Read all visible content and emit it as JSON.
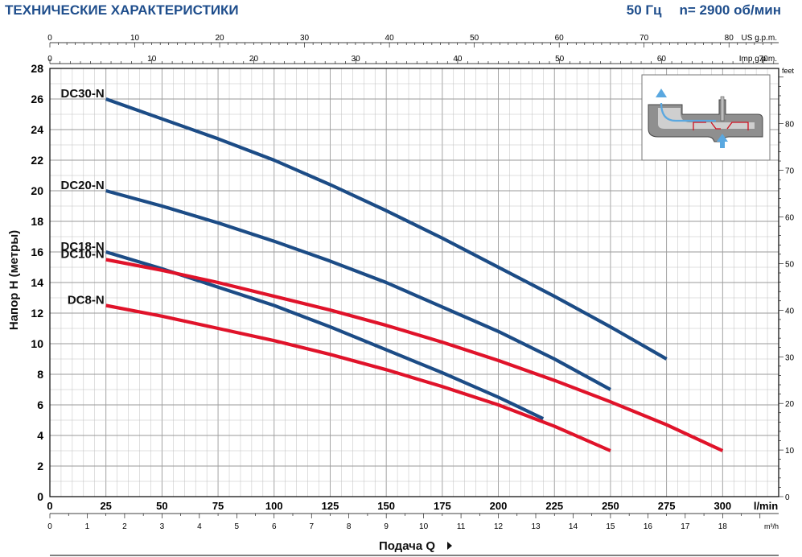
{
  "header": {
    "title": "ТЕХНИЧЕСКИЕ ХАРАКТЕРИСТИКИ",
    "frequency": "50 Гц",
    "speed": "n= 2900 об/мин"
  },
  "colors": {
    "blue": "#1c4c86",
    "red": "#e0132a",
    "grid": "#bfbfbf",
    "header": "#1f4e8c"
  },
  "chart_data": {
    "type": "line",
    "title": "",
    "xlabel": "Подача Q",
    "ylabel": "Напор H (метры)",
    "xlim": [
      0,
      325
    ],
    "ylim": [
      0,
      28
    ],
    "x_unit": "l/min",
    "x_ticks": [
      0,
      25,
      50,
      75,
      100,
      125,
      150,
      175,
      200,
      225,
      250,
      275,
      300
    ],
    "y_ticks": [
      0,
      2,
      4,
      6,
      8,
      10,
      12,
      14,
      16,
      18,
      20,
      22,
      24,
      26,
      28
    ],
    "secondary_axes": {
      "us_gpm": {
        "label": "US g.p.m.",
        "ticks": [
          0,
          10,
          20,
          30,
          40,
          50,
          60,
          70,
          80
        ]
      },
      "imp_gpm": {
        "label": "Imp g.p.m.",
        "ticks": [
          0,
          10,
          20,
          30,
          40,
          50,
          60,
          70
        ]
      },
      "m3h": {
        "label": "m³/h",
        "ticks": [
          0,
          1,
          2,
          3,
          4,
          5,
          6,
          7,
          8,
          9,
          10,
          11,
          12,
          13,
          14,
          15,
          16,
          17,
          18
        ]
      },
      "feet": {
        "label": "feet",
        "ticks": [
          0,
          10,
          20,
          30,
          40,
          50,
          60,
          70,
          80
        ]
      }
    },
    "grid": true,
    "series": [
      {
        "name": "DC30-N",
        "color": "blue",
        "x": [
          25,
          50,
          75,
          100,
          125,
          150,
          175,
          200,
          225,
          250,
          275
        ],
        "y": [
          26.0,
          24.7,
          23.4,
          22.0,
          20.4,
          18.7,
          16.9,
          15.0,
          13.1,
          11.1,
          9.0
        ]
      },
      {
        "name": "DC20-N",
        "color": "blue",
        "x": [
          25,
          50,
          75,
          100,
          125,
          150,
          175,
          200,
          225,
          250
        ],
        "y": [
          20.0,
          19.0,
          17.9,
          16.7,
          15.4,
          14.0,
          12.4,
          10.8,
          9.0,
          7.0
        ]
      },
      {
        "name": "DC18-N",
        "color": "blue",
        "x": [
          25,
          50,
          75,
          100,
          125,
          150,
          175,
          200,
          220
        ],
        "y": [
          16.0,
          14.9,
          13.7,
          12.5,
          11.1,
          9.6,
          8.1,
          6.5,
          5.1
        ]
      },
      {
        "name": "DC10-N",
        "color": "red",
        "x": [
          25,
          50,
          75,
          100,
          125,
          150,
          175,
          200,
          225,
          250,
          275,
          300
        ],
        "y": [
          15.5,
          14.8,
          14.0,
          13.1,
          12.2,
          11.2,
          10.1,
          8.9,
          7.6,
          6.2,
          4.7,
          3.0
        ]
      },
      {
        "name": "DC8-N",
        "color": "red",
        "x": [
          25,
          50,
          75,
          100,
          125,
          150,
          175,
          200,
          225,
          250
        ],
        "y": [
          12.5,
          11.8,
          11.0,
          10.2,
          9.3,
          8.3,
          7.2,
          6.0,
          4.6,
          3.0
        ]
      }
    ]
  }
}
